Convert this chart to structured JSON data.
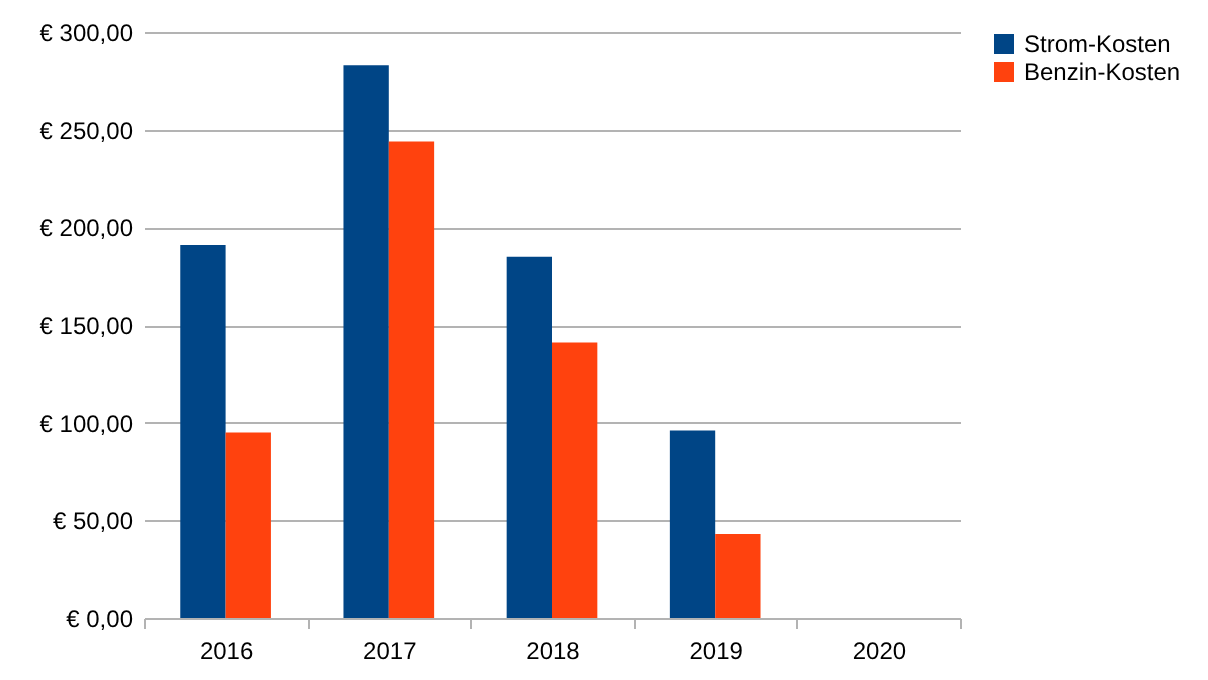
{
  "chart_data": {
    "type": "bar",
    "categories": [
      "2016",
      "2017",
      "2018",
      "2019",
      "2020"
    ],
    "series": [
      {
        "name": "Strom-Kosten",
        "color": "#004586",
        "values": [
          191,
          283,
          185,
          96,
          0
        ]
      },
      {
        "name": "Benzin-Kosten",
        "color": "#ff420e",
        "values": [
          95,
          244,
          141,
          43,
          0
        ]
      }
    ],
    "ylim": [
      0,
      300
    ],
    "yticks": [
      {
        "value": 0,
        "label": "€ 0,00"
      },
      {
        "value": 50,
        "label": "€ 50,00"
      },
      {
        "value": 100,
        "label": "€ 100,00"
      },
      {
        "value": 150,
        "label": "€ 150,00"
      },
      {
        "value": 200,
        "label": "€ 200,00"
      },
      {
        "value": 250,
        "label": "€ 250,00"
      },
      {
        "value": 300,
        "label": "€ 300,00"
      }
    ],
    "grid": "y",
    "legend": "right"
  }
}
